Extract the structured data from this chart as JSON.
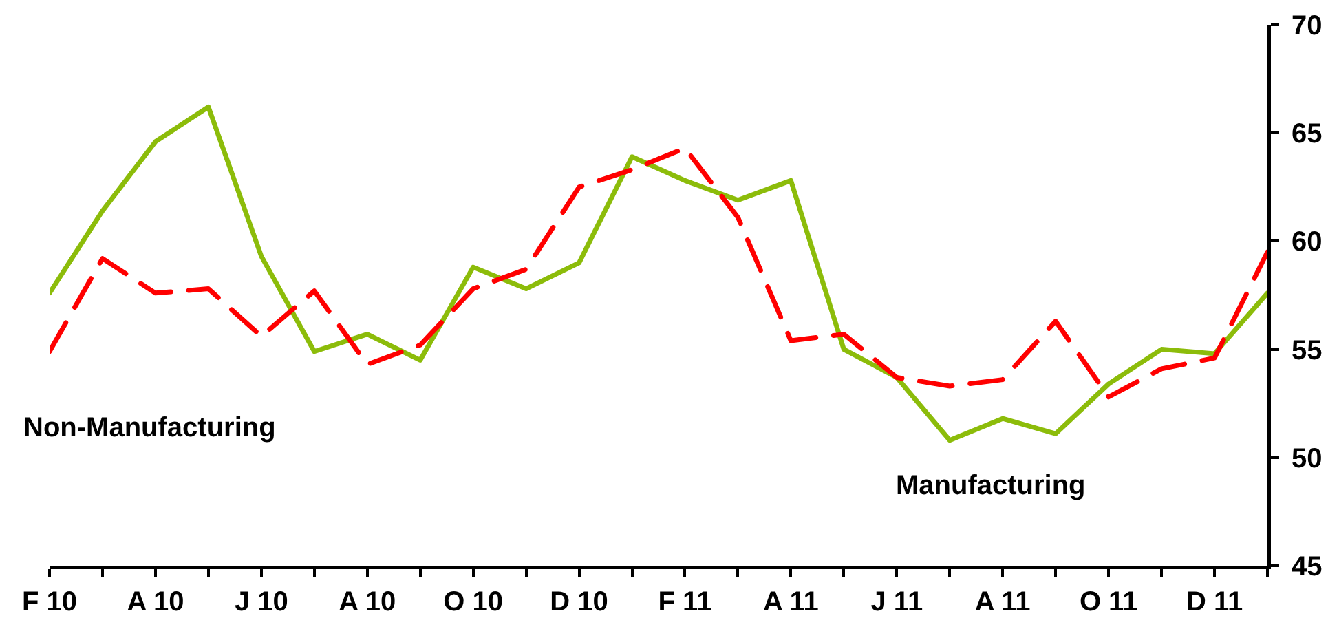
{
  "chart_data": {
    "type": "line",
    "categories": [
      "F 10",
      null,
      "A 10",
      null,
      "J 10",
      null,
      "A 10",
      null,
      "O 10",
      null,
      "D 10",
      null,
      "F 11",
      null,
      "A 11",
      null,
      "J 11",
      null,
      "A 11",
      null,
      "O 11",
      null,
      "D 11",
      null
    ],
    "series": [
      {
        "name": "Manufacturing",
        "color": "#8cbc0a",
        "line_style": "solid",
        "values": [
          57.6,
          61.4,
          64.6,
          66.2,
          59.3,
          54.9,
          55.7,
          54.5,
          58.8,
          57.8,
          59.0,
          63.9,
          62.8,
          61.9,
          62.8,
          55.0,
          53.7,
          50.8,
          51.8,
          51.1,
          53.4,
          55.0,
          54.8,
          57.6
        ]
      },
      {
        "name": "Non-Manufacturing",
        "color": "#ff0000",
        "line_style": "dashed",
        "values": [
          54.9,
          59.2,
          57.6,
          57.8,
          55.6,
          57.7,
          54.3,
          55.2,
          57.8,
          58.7,
          62.5,
          63.3,
          64.3,
          61.1,
          55.4,
          55.7,
          53.7,
          53.3,
          53.6,
          56.3,
          52.8,
          54.1,
          54.6,
          59.5
        ]
      }
    ],
    "ylim": [
      45,
      70
    ],
    "yticks": [
      45,
      50,
      55,
      60,
      65,
      70
    ]
  }
}
